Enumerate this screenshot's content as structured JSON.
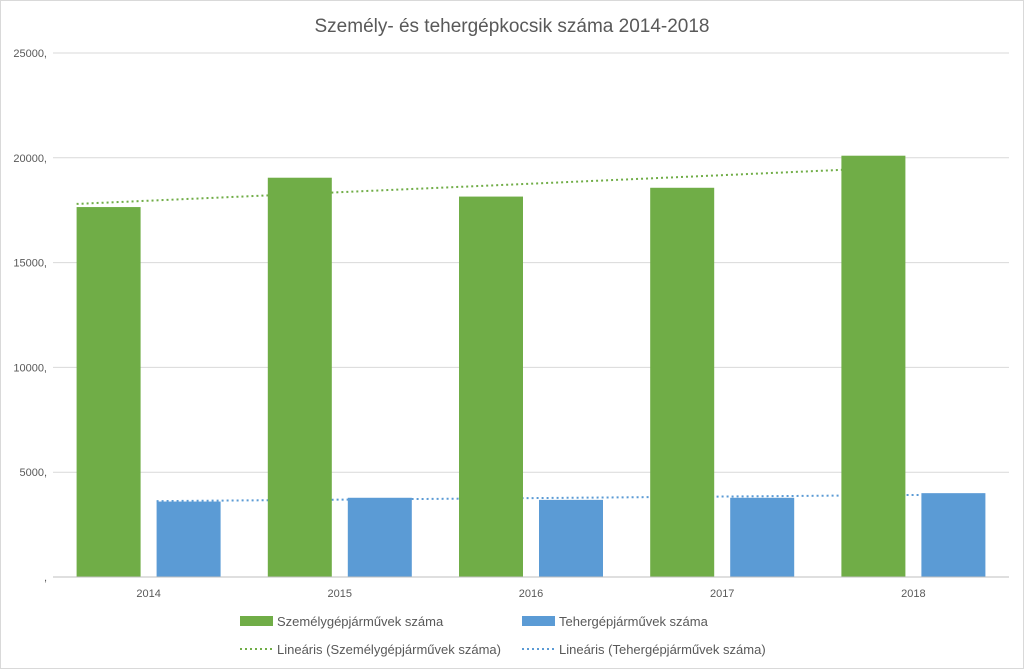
{
  "chart_data": {
    "type": "bar",
    "title": "Személy- és tehergépkocsik száma 2014-2018",
    "categories": [
      "2014",
      "2015",
      "2016",
      "2017",
      "2018"
    ],
    "series": [
      {
        "name": "Személygépjárművek száma",
        "color": "#70ad47",
        "values": [
          17650,
          19050,
          18150,
          18570,
          20100
        ]
      },
      {
        "name": "Tehergépjárművek száma",
        "color": "#5b9bd5",
        "values": [
          3600,
          3780,
          3680,
          3780,
          4000
        ]
      }
    ],
    "trendlines": [
      {
        "name": "Lineáris (Személygépjárművek száma)",
        "color": "#70ad47",
        "start": 17800,
        "end": 19560
      },
      {
        "name": "Lineáris (Tehergépjárművek száma)",
        "color": "#5b9bd5",
        "start": 3620,
        "end": 3940
      }
    ],
    "y_ticks": [
      {
        "value": 0,
        "label": ","
      },
      {
        "value": 5000,
        "label": "5000,"
      },
      {
        "value": 10000,
        "label": "10000,"
      },
      {
        "value": 15000,
        "label": "15000,"
      },
      {
        "value": 20000,
        "label": "20000,"
      },
      {
        "value": 25000,
        "label": "25000,"
      }
    ],
    "ylim": [
      0,
      25000
    ],
    "grid": true,
    "legend_position": "bottom"
  }
}
